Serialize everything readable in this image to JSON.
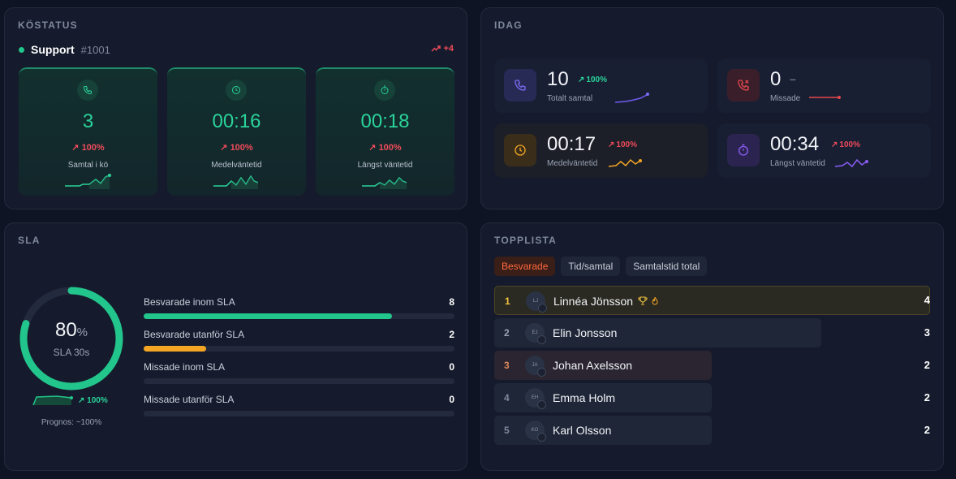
{
  "queue_status": {
    "title": "KÖSTATUS",
    "queue_name": "Support",
    "queue_id": "#1001",
    "trend": "+4",
    "cards": [
      {
        "value": "3",
        "change": "100%",
        "label": "Samtal i kö",
        "icon": "phone-icon"
      },
      {
        "value": "00:16",
        "change": "100%",
        "label": "Medelväntetid",
        "icon": "clock-icon"
      },
      {
        "value": "00:18",
        "change": "100%",
        "label": "Längst väntetid",
        "icon": "stopwatch-icon"
      }
    ]
  },
  "today": {
    "title": "IDAG",
    "cards": [
      {
        "value": "10",
        "change": "100%",
        "label": "Totalt samtal",
        "icon": "phone-icon",
        "color": "#6f5cf0"
      },
      {
        "value": "0",
        "change": "–",
        "label": "Missade",
        "icon": "missed-call-icon",
        "color": "#e5484d"
      },
      {
        "value": "00:17",
        "change": "100%",
        "label": "Medelväntetid",
        "icon": "clock-icon",
        "color": "#f5a524"
      },
      {
        "value": "00:34",
        "change": "100%",
        "label": "Längst väntetid",
        "icon": "stopwatch-icon",
        "color": "#8b5cf6"
      }
    ]
  },
  "sla": {
    "title": "SLA",
    "percent": "80",
    "percent_unit": "%",
    "gauge_fraction": 0.8,
    "subtitle": "SLA 30s",
    "prognosis_change": "100%",
    "prognosis_label": "Prognos: ~100%",
    "rows": [
      {
        "label": "Besvarade inom SLA",
        "value": "8",
        "fraction": 0.8,
        "color": "#22c58b"
      },
      {
        "label": "Besvarade utanför SLA",
        "value": "2",
        "fraction": 0.2,
        "color": "#f5a524"
      },
      {
        "label": "Missade inom SLA",
        "value": "0",
        "fraction": 0,
        "color": "#e5484d"
      },
      {
        "label": "Missade utanför SLA",
        "value": "0",
        "fraction": 0,
        "color": "#e5484d"
      }
    ]
  },
  "leaderboard": {
    "title": "TOPPLISTA",
    "tabs": [
      "Besvarade",
      "Tid/samtal",
      "Samtalstid total"
    ],
    "active_tab": 0,
    "entries": [
      {
        "rank": "1",
        "initials": "LJ",
        "name": "Linnéa Jönsson",
        "score": "4",
        "fraction": 1.0
      },
      {
        "rank": "2",
        "initials": "EJ",
        "name": "Elin Jonsson",
        "score": "3",
        "fraction": 0.75
      },
      {
        "rank": "3",
        "initials": "JA",
        "name": "Johan Axelsson",
        "score": "2",
        "fraction": 0.5
      },
      {
        "rank": "4",
        "initials": "EH",
        "name": "Emma Holm",
        "score": "2",
        "fraction": 0.5
      },
      {
        "rank": "5",
        "initials": "KO",
        "name": "Karl Olsson",
        "score": "2",
        "fraction": 0.5
      }
    ]
  }
}
